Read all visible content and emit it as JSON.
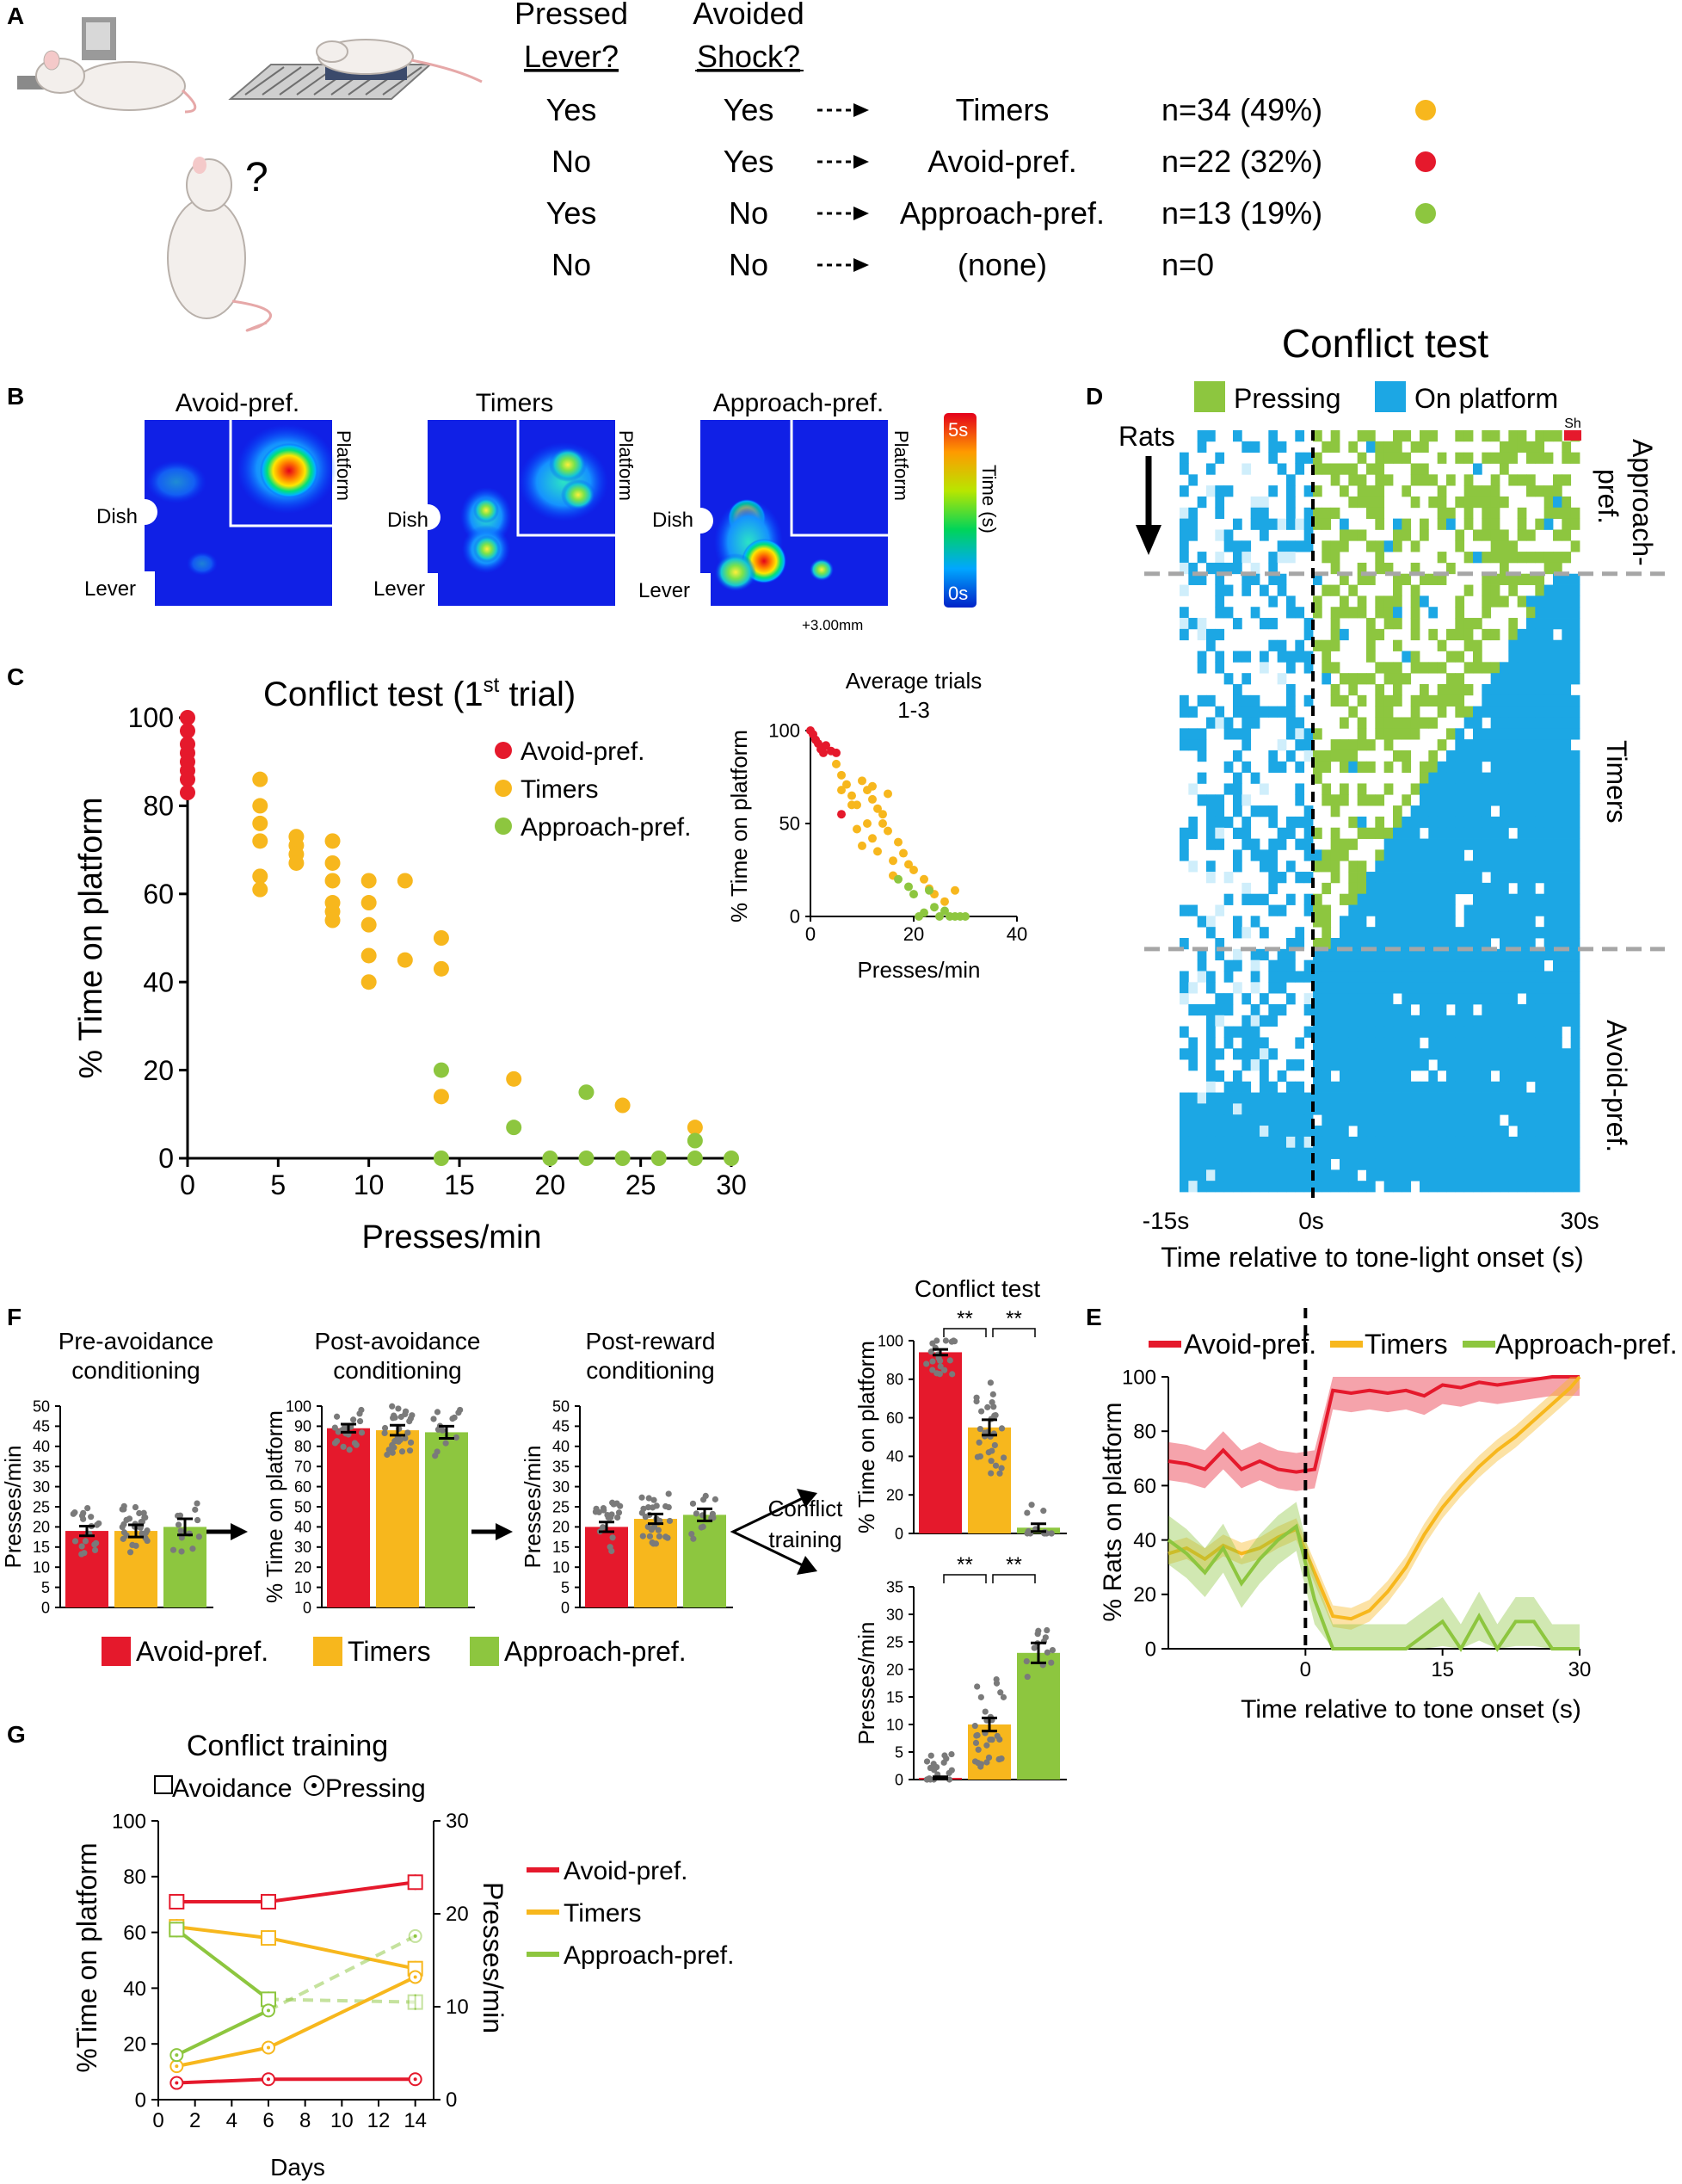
{
  "colors": {
    "avoid": "#e5192c",
    "timers": "#f7b71d",
    "approach": "#8dc63f",
    "platform": "#1ca7e4",
    "pressing": "#8dc63f",
    "shock": "#e5192c",
    "gray": "#9b9b9b",
    "dashed": "#a6a6a6"
  },
  "panel_labels": [
    "A",
    "B",
    "C",
    "D",
    "E",
    "F",
    "G"
  ],
  "panelA": {
    "col1": [
      "Pressed",
      "Lever?"
    ],
    "col2": [
      "Avoided",
      "Shock?"
    ],
    "question_mark": "?",
    "rows": [
      {
        "pressed": "Yes",
        "avoided": "Yes",
        "group": "Timers",
        "n": "n=34 (49%)",
        "color": "#f7b71d"
      },
      {
        "pressed": "No",
        "avoided": "Yes",
        "group": "Avoid-pref.",
        "n": "n=22 (32%)",
        "color": "#e5192c"
      },
      {
        "pressed": "Yes",
        "avoided": "No",
        "group": "Approach-pref.",
        "n": "n=13 (19%)",
        "color": "#8dc63f"
      },
      {
        "pressed": "No",
        "avoided": "No",
        "group": "(none)",
        "n": "n=0",
        "color": ""
      }
    ]
  },
  "panelB": {
    "maps": [
      {
        "title": "Avoid-pref.",
        "platform": "Platform",
        "dish": "Dish",
        "lever": "Lever"
      },
      {
        "title": "Timers",
        "platform": "Platform",
        "dish": "Dish",
        "lever": "Lever"
      },
      {
        "title": "Approach-pref.",
        "platform": "Platform",
        "dish": "Dish",
        "lever": "Lever"
      }
    ],
    "scale_max": "5s",
    "scale_min": "0s",
    "scale_label": "Time (s)",
    "coord_note": "+3.00mm"
  },
  "chart_data": [
    {
      "id": "C-main",
      "type": "scatter",
      "title": "Conflict test (1st trial)",
      "title_main": "Conflict test (1",
      "title_sup": "st",
      "title_tail": " trial)",
      "xlabel": "Presses/min",
      "ylabel": "% Time on platform",
      "xlim": [
        0,
        30
      ],
      "ylim": [
        0,
        100
      ],
      "xticks": [
        0,
        5,
        10,
        15,
        20,
        25,
        30
      ],
      "yticks": [
        0,
        20,
        40,
        60,
        80,
        100
      ],
      "legend": [
        "Avoid-pref.",
        "Timers",
        "Approach-pref."
      ],
      "series": [
        {
          "name": "Avoid-pref.",
          "points": [
            [
              0,
              100
            ],
            [
              0,
              97
            ],
            [
              0,
              94
            ],
            [
              0,
              92
            ],
            [
              0,
              90
            ],
            [
              0,
              88
            ],
            [
              0,
              86
            ],
            [
              0,
              83
            ]
          ]
        },
        {
          "name": "Timers",
          "points": [
            [
              4,
              86
            ],
            [
              4,
              80
            ],
            [
              4,
              76
            ],
            [
              4,
              72
            ],
            [
              4,
              64
            ],
            [
              4,
              61
            ],
            [
              6,
              73
            ],
            [
              6,
              71
            ],
            [
              6,
              69
            ],
            [
              6,
              67
            ],
            [
              8,
              72
            ],
            [
              8,
              67
            ],
            [
              8,
              63
            ],
            [
              8,
              58
            ],
            [
              8,
              56
            ],
            [
              8,
              54
            ],
            [
              10,
              63
            ],
            [
              10,
              58
            ],
            [
              10,
              53
            ],
            [
              10,
              46
            ],
            [
              10,
              40
            ],
            [
              12,
              63
            ],
            [
              12,
              45
            ],
            [
              14,
              50
            ],
            [
              14,
              43
            ],
            [
              14,
              14
            ],
            [
              18,
              18
            ],
            [
              24,
              12
            ],
            [
              28,
              7
            ]
          ]
        },
        {
          "name": "Approach-pref.",
          "points": [
            [
              14,
              20
            ],
            [
              14,
              0
            ],
            [
              18,
              7
            ],
            [
              20,
              0
            ],
            [
              22,
              15
            ],
            [
              22,
              0
            ],
            [
              24,
              0
            ],
            [
              26,
              0
            ],
            [
              28,
              4
            ],
            [
              28,
              0
            ],
            [
              30,
              0
            ]
          ]
        }
      ]
    },
    {
      "id": "C-inset",
      "type": "scatter",
      "title": "Average trials 1-3",
      "title_lines": [
        "Average trials",
        "1-3"
      ],
      "xlabel": "Presses/min",
      "ylabel": "% Time on platform",
      "xlim": [
        0,
        40
      ],
      "ylim": [
        0,
        100
      ],
      "xticks": [
        0,
        20,
        40
      ],
      "yticks": [
        0,
        50,
        100
      ],
      "series": [
        {
          "name": "Avoid-pref.",
          "points": [
            [
              0,
              100
            ],
            [
              0.5,
              98
            ],
            [
              1,
              95
            ],
            [
              1.5,
              93
            ],
            [
              2,
              90
            ],
            [
              2.5,
              88
            ],
            [
              3,
              92
            ],
            [
              4,
              89
            ],
            [
              5,
              88
            ],
            [
              6,
              55
            ]
          ]
        },
        {
          "name": "Timers",
          "points": [
            [
              5,
              82
            ],
            [
              6,
              76
            ],
            [
              7,
              71
            ],
            [
              8,
              65
            ],
            [
              9,
              60
            ],
            [
              10,
              73
            ],
            [
              11,
              68
            ],
            [
              12,
              63
            ],
            [
              13,
              58
            ],
            [
              14,
              50
            ],
            [
              15,
              46
            ],
            [
              12,
              42
            ],
            [
              10,
              38
            ],
            [
              16,
              30
            ],
            [
              18,
              34
            ],
            [
              20,
              25
            ],
            [
              22,
              20
            ],
            [
              24,
              12
            ],
            [
              26,
              8
            ],
            [
              28,
              14
            ],
            [
              14,
              55
            ],
            [
              9,
              47
            ],
            [
              17,
              40
            ],
            [
              19,
              28
            ],
            [
              8,
              60
            ],
            [
              12,
              70
            ],
            [
              15,
              66
            ],
            [
              11,
              50
            ],
            [
              13,
              35
            ],
            [
              16,
              22
            ],
            [
              23,
              15
            ],
            [
              6,
              68
            ]
          ]
        },
        {
          "name": "Approach-pref.",
          "points": [
            [
              17,
              20
            ],
            [
              19,
              16
            ],
            [
              20,
              12
            ],
            [
              21,
              0
            ],
            [
              23,
              14
            ],
            [
              24,
              5
            ],
            [
              25,
              0
            ],
            [
              27,
              0
            ],
            [
              28,
              0
            ],
            [
              29,
              0
            ],
            [
              30,
              0
            ],
            [
              22,
              2
            ],
            [
              26,
              3
            ]
          ]
        }
      ]
    },
    {
      "id": "D-raster",
      "type": "heatmap",
      "title": "Conflict test",
      "legend": [
        "Pressing",
        "On platform"
      ],
      "ylabel": "Rats",
      "xlabel": "Time relative to tone-light onset (s)",
      "xticks": [
        "-15s",
        "0s",
        "30s"
      ],
      "shock_label": "Sh",
      "groups": [
        {
          "name": "Approach-pref.",
          "label_lines": [
            "Approach-",
            "pref."
          ],
          "rows": 13
        },
        {
          "name": "Timers",
          "label_lines": [
            "Timers"
          ],
          "rows": 34
        },
        {
          "name": "Avoid-pref.",
          "label_lines": [
            "Avoid-pref."
          ],
          "rows": 22
        }
      ],
      "bins": 45
    },
    {
      "id": "E",
      "type": "line",
      "xlabel": "Time relative to tone onset (s)",
      "ylabel": "% Rats on platform",
      "xlim": [
        -15,
        30
      ],
      "ylim": [
        0,
        100
      ],
      "xticks": [
        0,
        15,
        30
      ],
      "yticks": [
        0,
        20,
        40,
        60,
        80,
        100
      ],
      "x": [
        -15,
        -13,
        -11,
        -9,
        -7,
        -5,
        -3,
        -1,
        1,
        3,
        5,
        7,
        9,
        11,
        13,
        15,
        17,
        19,
        21,
        23,
        25,
        27,
        29,
        30
      ],
      "series": [
        {
          "name": "Avoid-pref.",
          "values": [
            69,
            68,
            66,
            73,
            66,
            69,
            66,
            65,
            66,
            95,
            94,
            95,
            94,
            95,
            93,
            97,
            96,
            98,
            97,
            98,
            99,
            100,
            100,
            100
          ],
          "err": 7
        },
        {
          "name": "Timers",
          "values": [
            35,
            37,
            33,
            38,
            35,
            37,
            41,
            44,
            28,
            12,
            11,
            14,
            21,
            30,
            42,
            52,
            60,
            67,
            73,
            78,
            84,
            90,
            96,
            100
          ],
          "err": 4
        },
        {
          "name": "Approach-pref.",
          "values": [
            40,
            35,
            28,
            37,
            24,
            33,
            40,
            45,
            18,
            0,
            0,
            0,
            0,
            0,
            5,
            10,
            0,
            12,
            0,
            10,
            10,
            0,
            0,
            0
          ],
          "err": 9
        }
      ],
      "legend": [
        "Avoid-pref.",
        "Timers",
        "Approach-pref."
      ]
    },
    {
      "id": "F",
      "type": "bar",
      "groups": [
        "Avoid-pref.",
        "Timers",
        "Approach-pref."
      ],
      "arrow_label": [
        "Conflict",
        "training"
      ],
      "subplots": [
        {
          "title": [
            "Pre-avoidance",
            "conditioning"
          ],
          "ylabel": "Presses/min",
          "ylim": [
            0,
            50
          ],
          "yticks": [
            0,
            5,
            10,
            15,
            20,
            25,
            30,
            35,
            40,
            45,
            50
          ],
          "values": [
            19,
            19,
            20
          ],
          "sem": [
            1.2,
            1.5,
            2.0
          ]
        },
        {
          "title": [
            "Post-avoidance",
            "conditioning"
          ],
          "ylabel": "% Time on platform",
          "ylim": [
            0,
            100
          ],
          "yticks": [
            0,
            10,
            20,
            30,
            40,
            50,
            60,
            70,
            80,
            90,
            100
          ],
          "values": [
            89,
            88,
            87
          ],
          "sem": [
            2.0,
            2.5,
            3.0
          ]
        },
        {
          "title": [
            "Post-reward",
            "conditioning"
          ],
          "ylabel": "Presses/min",
          "ylim": [
            0,
            50
          ],
          "yticks": [
            0,
            5,
            10,
            15,
            20,
            25,
            30,
            35,
            40,
            45,
            50
          ],
          "values": [
            20,
            22,
            23
          ],
          "sem": [
            1.2,
            1.2,
            1.5
          ]
        },
        {
          "title": [
            "Conflict test"
          ],
          "ylabel": "% Time on platform",
          "ylim": [
            0,
            100
          ],
          "yticks": [
            0,
            20,
            40,
            60,
            80,
            100
          ],
          "values": [
            94,
            55,
            3
          ],
          "sem": [
            1.5,
            4.0,
            2.0
          ],
          "significance": [
            "**",
            "**"
          ]
        },
        {
          "title": [
            ""
          ],
          "ylabel": "Presses/min",
          "ylim": [
            0,
            35
          ],
          "yticks": [
            0,
            5,
            10,
            15,
            20,
            25,
            30,
            35
          ],
          "values": [
            0.3,
            10,
            23
          ],
          "sem": [
            0.2,
            1.2,
            1.8
          ],
          "significance": [
            "**",
            "**"
          ]
        }
      ]
    },
    {
      "id": "G",
      "type": "line",
      "title": "Conflict training",
      "legend_markers": [
        "Avoidance",
        "Pressing"
      ],
      "xlabel": "Days",
      "ylabel_left": "%Time on platform",
      "ylabel_right": "Presses/min",
      "xlim": [
        0,
        15
      ],
      "xticks": [
        0,
        2,
        4,
        6,
        8,
        10,
        12,
        14
      ],
      "ylim_left": [
        0,
        100
      ],
      "yticks_left": [
        0,
        20,
        40,
        60,
        80,
        100
      ],
      "ylim_right": [
        0,
        30
      ],
      "yticks_right": [
        0,
        10,
        20,
        30
      ],
      "x": [
        1,
        6,
        14
      ],
      "avoidance": [
        {
          "name": "Avoid-pref.",
          "values": [
            71,
            71,
            78
          ]
        },
        {
          "name": "Timers",
          "values": [
            62,
            58,
            47
          ]
        },
        {
          "name": "Approach-pref.",
          "values": [
            61,
            36,
            35
          ],
          "dashed_from": 1
        }
      ],
      "pressing_rate": [
        {
          "name": "Avoid-pref.",
          "values": [
            1.8,
            2.2,
            2.2
          ]
        },
        {
          "name": "Timers",
          "values": [
            3.6,
            5.6,
            13.2
          ]
        },
        {
          "name": "Approach-pref.",
          "values": [
            4.8,
            9.6,
            17.6
          ],
          "dashed_from": 1
        }
      ],
      "legend": [
        "Avoid-pref.",
        "Timers",
        "Approach-pref."
      ]
    }
  ]
}
